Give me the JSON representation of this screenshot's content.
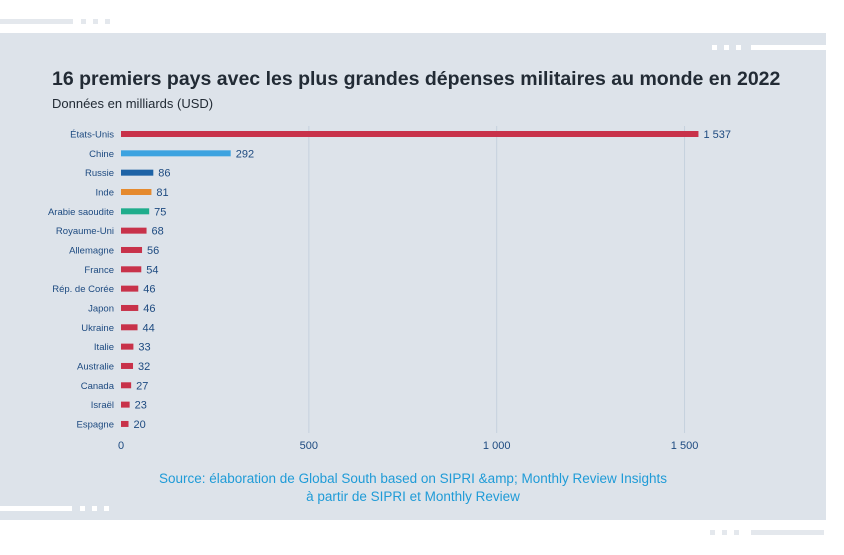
{
  "title": "16 premiers pays avec les plus grandes dépenses militaires au monde en 2022",
  "subtitle": "Données en milliards (USD)",
  "source_line1": "Source: élaboration de Global South based on SIPRI &amp; Monthly Review Insights",
  "source_line2": "à partir de SIPRI et Monthly Review",
  "colors": {
    "background": "#dde3ea",
    "red": "#c8324a",
    "light_blue": "#3da3e0",
    "dark_blue": "#1e63a6",
    "orange": "#e58a2e",
    "green": "#1fad8c",
    "value_label": "#1d4a80",
    "source_text": "#1f9bd7"
  },
  "chart_data": {
    "type": "bar",
    "orientation": "horizontal",
    "title": "16 premiers pays avec les plus grandes dépenses militaires au monde en 2022",
    "subtitle": "Données en milliards (USD)",
    "categories": [
      "États-Unis",
      "Chine",
      "Russie",
      "Inde",
      "Arabie saoudite",
      "Royaume-Uni",
      "Allemagne",
      "France",
      "Rép. de Corée",
      "Japon",
      "Ukraine",
      "Italie",
      "Australie",
      "Canada",
      "Israël",
      "Espagne"
    ],
    "values": [
      1537,
      292,
      86,
      81,
      75,
      68,
      56,
      54,
      46,
      46,
      44,
      33,
      32,
      27,
      23,
      20
    ],
    "value_labels": [
      "1 537",
      "292",
      "86",
      "81",
      "75",
      "68",
      "56",
      "54",
      "46",
      "46",
      "44",
      "33",
      "32",
      "27",
      "23",
      "20"
    ],
    "bar_colors": [
      "#c8324a",
      "#3da3e0",
      "#1e63a6",
      "#e58a2e",
      "#1fad8c",
      "#c8324a",
      "#c8324a",
      "#c8324a",
      "#c8324a",
      "#c8324a",
      "#c8324a",
      "#c8324a",
      "#c8324a",
      "#c8324a",
      "#c8324a",
      "#c8324a"
    ],
    "xticks": [
      0,
      500,
      1000,
      1500
    ],
    "xtick_labels": [
      "0",
      "500",
      "1 000",
      "1 500"
    ],
    "xlim": [
      0,
      1700
    ],
    "grid": true
  }
}
